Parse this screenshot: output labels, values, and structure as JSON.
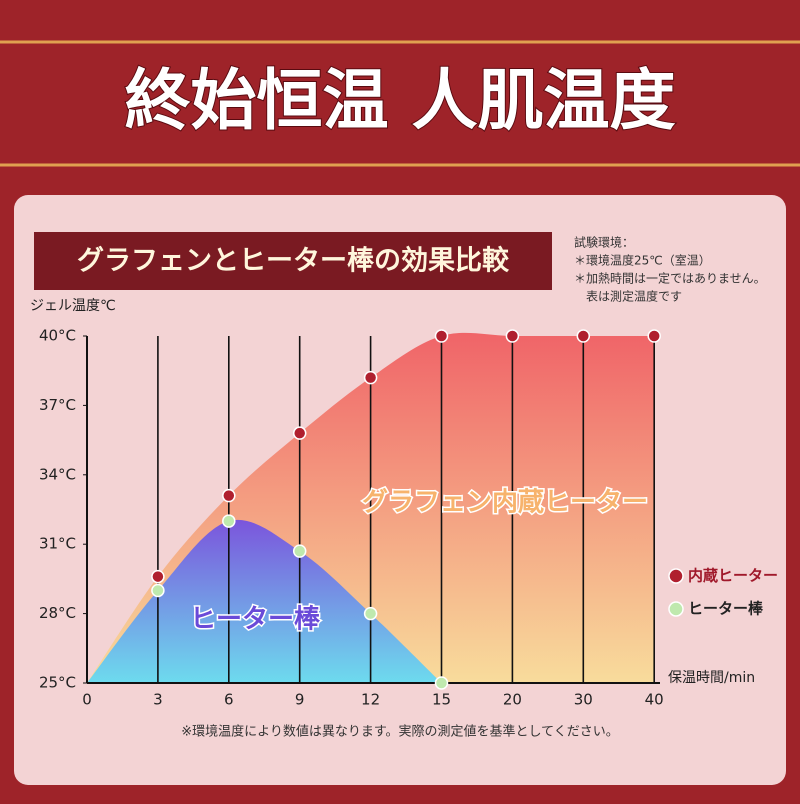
{
  "header": {
    "title": "終始恒温 人肌温度"
  },
  "chart_data": {
    "type": "area",
    "title": "グラフェンとヒーター棒の効果比較",
    "notes": [
      "試験環境：",
      "＊環境温度25℃（室温）",
      "＊加熱時間は一定ではありません。",
      "表は測定温度です"
    ],
    "y_label": "ジェル温度℃",
    "x_label": "保温時間/min",
    "categories": [
      "0",
      "3",
      "6",
      "9",
      "12",
      "15",
      "20",
      "30",
      "40"
    ],
    "series": [
      {
        "name": "内蔵ヒーター",
        "color": "#b01f2e",
        "gradient": [
          "#f06468",
          "#f8dc9c"
        ],
        "values": [
          25,
          29.6,
          33.1,
          35.8,
          38.2,
          40,
          40,
          40,
          40
        ]
      },
      {
        "name": "ヒーター棒",
        "color": "#bfe9ae",
        "gradient": [
          "#7b55dc",
          "#6ddbee"
        ],
        "values": [
          25,
          29,
          32,
          30.7,
          28,
          25,
          null,
          null,
          null
        ]
      }
    ],
    "annotations": [
      "グラフェン内蔵ヒーター",
      "ヒーター棒"
    ],
    "ylim": [
      25,
      40
    ],
    "yticks": [
      {
        "value": 25,
        "label": "25°C"
      },
      {
        "value": 28,
        "label": "28°C"
      },
      {
        "value": 31,
        "label": "31°C"
      },
      {
        "value": 34,
        "label": "34°C"
      },
      {
        "value": 37,
        "label": "37°C"
      },
      {
        "value": 40,
        "label": "40°C"
      }
    ],
    "grid": true,
    "legend": "right",
    "footnote": "※環境温度により数値は異なります。実際の測定値を基準としてください。"
  }
}
